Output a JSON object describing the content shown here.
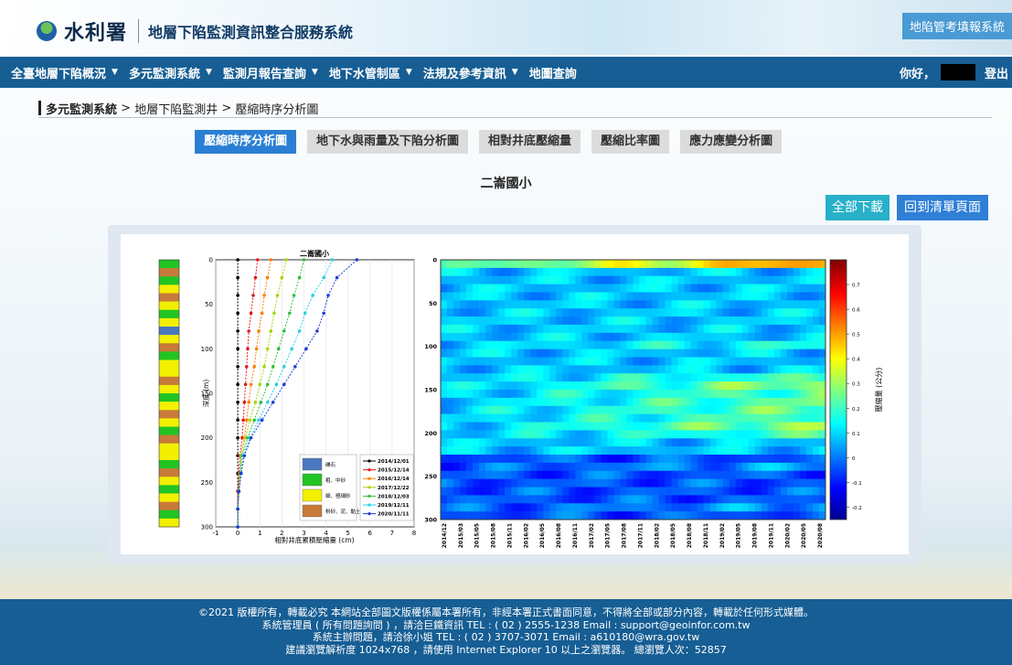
{
  "header": {
    "org_name": "水利署",
    "system_title": "地層下陷監測資訊整合服務系統",
    "top_link": "地陷管考填報系統"
  },
  "nav": {
    "items": [
      "全臺地層下陷概況",
      "多元監測系統",
      "監測月報告查詢",
      "地下水管制區",
      "法規及參考資訊",
      "地圖查詢"
    ],
    "greeting": "你好，",
    "logout": "登出"
  },
  "breadcrumb": {
    "level1": "多元監測系統",
    "sep1": " > ",
    "level2": "地層下陷監測井",
    "sep2": " > ",
    "level3": "壓縮時序分析圖"
  },
  "tabs": [
    "壓縮時序分析圖",
    "地下水與雨量及下陷分析圖",
    "相對井底壓縮量",
    "壓縮比率圖",
    "應力應變分析圖"
  ],
  "station_name": "二崙國小",
  "buttons": {
    "download_all": "全部下載",
    "back_to_list": "回到清單頁面"
  },
  "chart_data": [
    {
      "type": "line",
      "title": "二崙國小",
      "xlabel": "相對井底累積壓縮量 (cm)",
      "ylabel": "深度 (m)",
      "xlim": [
        -1,
        8
      ],
      "ylim": [
        300,
        0
      ],
      "x_ticks": [
        -1,
        0,
        1,
        2,
        3,
        4,
        5,
        6,
        7,
        8
      ],
      "y_ticks": [
        0,
        50,
        100,
        150,
        200,
        250,
        300
      ],
      "depths": [
        0,
        20,
        40,
        60,
        80,
        100,
        120,
        140,
        160,
        180,
        200,
        220,
        240,
        260,
        280,
        300
      ],
      "series": [
        {
          "name": "2014/12/01",
          "color": "#000000",
          "values": [
            0.0,
            0.0,
            0.0,
            0.0,
            0.0,
            0.0,
            0.0,
            0.0,
            0.0,
            0.0,
            0.0,
            0.0,
            0.0,
            0.0,
            0.0,
            0.0
          ]
        },
        {
          "name": "2015/12/14",
          "color": "#e41a1c",
          "values": [
            0.9,
            0.8,
            0.7,
            0.6,
            0.5,
            0.45,
            0.4,
            0.35,
            0.3,
            0.25,
            0.2,
            0.1,
            0.05,
            0.0,
            0.0,
            0.0
          ]
        },
        {
          "name": "2016/12/14",
          "color": "#ff7f00",
          "values": [
            1.5,
            1.35,
            1.2,
            1.1,
            0.95,
            0.85,
            0.75,
            0.6,
            0.5,
            0.4,
            0.3,
            0.15,
            0.1,
            0.05,
            0.0,
            0.0
          ]
        },
        {
          "name": "2017/12/22",
          "color": "#a6d608",
          "values": [
            2.2,
            2.0,
            1.8,
            1.65,
            1.5,
            1.35,
            1.2,
            1.0,
            0.8,
            0.55,
            0.35,
            0.15,
            0.1,
            0.05,
            0.0,
            0.0
          ]
        },
        {
          "name": "2018/12/03",
          "color": "#2fbf3f",
          "values": [
            3.0,
            2.8,
            2.55,
            2.35,
            2.1,
            1.85,
            1.6,
            1.35,
            1.05,
            0.75,
            0.45,
            0.2,
            0.1,
            0.05,
            0.0,
            0.0
          ]
        },
        {
          "name": "2019/12/11",
          "color": "#2ad0e0",
          "values": [
            4.3,
            3.9,
            3.4,
            3.05,
            2.8,
            2.45,
            2.1,
            1.75,
            1.35,
            0.95,
            0.55,
            0.25,
            0.15,
            0.05,
            0.0,
            0.0
          ]
        },
        {
          "name": "2020/11/11",
          "color": "#1f3fd6",
          "values": [
            5.4,
            4.5,
            4.1,
            3.9,
            3.6,
            3.1,
            2.6,
            2.1,
            1.6,
            1.1,
            0.6,
            0.3,
            0.15,
            0.05,
            0.0,
            0.0
          ]
        }
      ],
      "legend_soil": [
        "礫石",
        "粗、中砂",
        "細、極細砂",
        "粉砂、泥、黏土"
      ],
      "legend_soil_colors": [
        "#4a78c0",
        "#22c422",
        "#f2f000",
        "#c87a3a"
      ]
    },
    {
      "type": "heatmap",
      "colorbar_label": "壓縮量 (公分)",
      "colorbar_ticks": [
        0.7,
        0.6,
        0.5,
        0.4,
        0.3,
        0.2,
        0.1,
        0,
        -0.1,
        -0.2
      ],
      "colorbar_range": [
        -0.25,
        0.8
      ],
      "y_ticks": [
        0,
        50,
        100,
        150,
        200,
        250,
        300
      ],
      "x_ticks": [
        "2014/12",
        "2015/03",
        "2015/05",
        "2015/08",
        "2015/11",
        "2016/02",
        "2016/05",
        "2016/08",
        "2016/11",
        "2017/02",
        "2017/05",
        "2017/08",
        "2017/11",
        "2018/02",
        "2018/05",
        "2018/08",
        "2018/11",
        "2019/02",
        "2019/05",
        "2019/08",
        "2019/11",
        "2020/02",
        "2020/05",
        "2020/08"
      ]
    }
  ],
  "footer": {
    "line1": "©2021 版權所有，轉載必究 本網站全部圖文版權係屬本署所有，非經本署正式書面同意，不得將全部或部分內容，轉載於任何形式媒體。",
    "line2": "系統管理員 ( 所有問題詢問 ) ，請洽巨鐵資訊 TEL : ( 02 ) 2555-1238 Email : support@geoinfor.com.tw",
    "line3": "系統主辦問題，請洽徐小姐 TEL : ( 02 ) 3707-3071 Email : a610180@wra.gov.tw",
    "line4": "建議瀏覽解析度 1024x768 ，請使用 Internet Explorer 10 以上之瀏覽器。 總瀏覽人次：52857"
  }
}
